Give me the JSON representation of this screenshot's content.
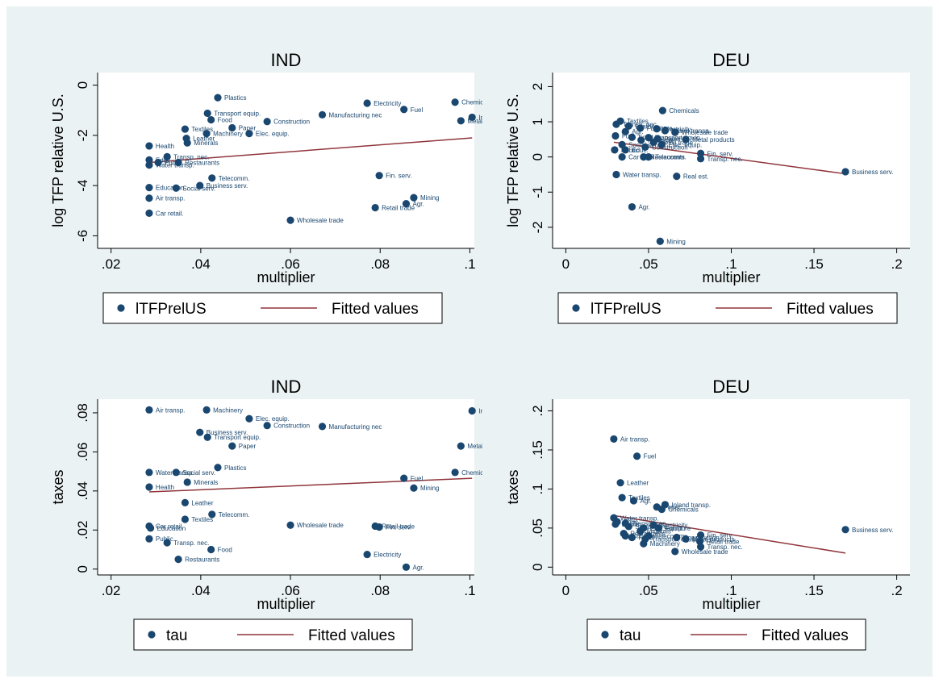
{
  "colors": {
    "background": "#eaf2f3",
    "marker": "#1a476f",
    "fit": "#90353b",
    "text": "#000000"
  },
  "chart_data": [
    {
      "type": "scatter",
      "title": "IND",
      "xlabel": "multiplier",
      "ylabel": "log TFP relative U.S.",
      "xlim": [
        0.017,
        0.101
      ],
      "ylim": [
        -6.5,
        0.5
      ],
      "xticks": [
        0.02,
        0.04,
        0.06,
        0.08,
        0.1
      ],
      "xtick_labels": [
        ".02",
        ".04",
        ".06",
        ".08",
        ".1"
      ],
      "yticks": [
        -6,
        -4,
        -2,
        0
      ],
      "ytick_labels": [
        "-6",
        "-4",
        "-2",
        "0"
      ],
      "legend": {
        "position": "bottom",
        "entries": [
          "lTFPrelUS",
          "Fitted values"
        ]
      },
      "fit_line": {
        "x": [
          0.0285,
          0.1005
        ],
        "y": [
          -3.08,
          -2.1
        ]
      },
      "points": [
        {
          "x": 0.0438,
          "y": -0.5,
          "label": "Plastics"
        },
        {
          "x": 0.0771,
          "y": -0.72,
          "label": "Electricity"
        },
        {
          "x": 0.0967,
          "y": -0.68,
          "label": "Chemicals"
        },
        {
          "x": 0.0853,
          "y": -0.97,
          "label": "Fuel"
        },
        {
          "x": 0.1005,
          "y": -1.28,
          "label": "Inland t"
        },
        {
          "x": 0.098,
          "y": -1.42,
          "label": "Metal prod"
        },
        {
          "x": 0.0415,
          "y": -1.12,
          "label": "Transport equip."
        },
        {
          "x": 0.0671,
          "y": -1.18,
          "label": "Manufacturing nec"
        },
        {
          "x": 0.0423,
          "y": -1.38,
          "label": "Food"
        },
        {
          "x": 0.0548,
          "y": -1.45,
          "label": "Construction"
        },
        {
          "x": 0.047,
          "y": -1.7,
          "label": "Paper"
        },
        {
          "x": 0.0365,
          "y": -1.75,
          "label": "Textiles"
        },
        {
          "x": 0.0413,
          "y": -1.93,
          "label": "Machinery"
        },
        {
          "x": 0.0508,
          "y": -1.93,
          "label": "Elec. equip."
        },
        {
          "x": 0.0368,
          "y": -2.12,
          "label": "Leather"
        },
        {
          "x": 0.037,
          "y": -2.3,
          "label": "Minerals"
        },
        {
          "x": 0.0285,
          "y": -2.42,
          "label": "Health"
        },
        {
          "x": 0.0325,
          "y": -2.85,
          "label": "Transp. nec."
        },
        {
          "x": 0.0285,
          "y": -2.98,
          "label": "Educ."
        },
        {
          "x": 0.0285,
          "y": -3.18,
          "label": "Water transp."
        },
        {
          "x": 0.035,
          "y": -3.08,
          "label": "Restaurants"
        },
        {
          "x": 0.0305,
          "y": -3.08,
          "label": "Public"
        },
        {
          "x": 0.0425,
          "y": -3.7,
          "label": "Telecomm."
        },
        {
          "x": 0.0798,
          "y": -3.6,
          "label": "Fin. serv."
        },
        {
          "x": 0.0398,
          "y": -4.0,
          "label": "Business serv."
        },
        {
          "x": 0.0285,
          "y": -4.08,
          "label": "Education"
        },
        {
          "x": 0.0345,
          "y": -4.1,
          "label": "Social serv."
        },
        {
          "x": 0.0285,
          "y": -4.5,
          "label": "Air transp."
        },
        {
          "x": 0.0875,
          "y": -4.48,
          "label": "Mining"
        },
        {
          "x": 0.0858,
          "y": -4.72,
          "label": "Agr."
        },
        {
          "x": 0.0789,
          "y": -4.88,
          "label": "Retail trade"
        },
        {
          "x": 0.0285,
          "y": -5.1,
          "label": "Car retail."
        },
        {
          "x": 0.06,
          "y": -5.38,
          "label": "Wholesale trade"
        }
      ]
    },
    {
      "type": "scatter",
      "title": "DEU",
      "xlabel": "multiplier",
      "ylabel": "log TFP relative U.S.",
      "xlim": [
        -0.008,
        0.208
      ],
      "ylim": [
        -2.6,
        2.4
      ],
      "xticks": [
        0,
        0.05,
        0.1,
        0.15,
        0.2
      ],
      "xtick_labels": [
        "0",
        ".05",
        ".1",
        ".15",
        ".2"
      ],
      "yticks": [
        -2,
        -1,
        0,
        1,
        2
      ],
      "ytick_labels": [
        "-2",
        "-1",
        "0",
        "1",
        "2"
      ],
      "legend": {
        "position": "bottom",
        "entries": [
          "lTFPrelUS",
          "Fitted values"
        ]
      },
      "fit_line": {
        "x": [
          0.029,
          0.169
        ],
        "y": [
          0.42,
          -0.48
        ]
      },
      "points": [
        {
          "x": 0.0585,
          "y": 1.32,
          "label": "Chemicals"
        },
        {
          "x": 0.033,
          "y": 1.02,
          "label": "Textiles"
        },
        {
          "x": 0.0305,
          "y": 0.93,
          "label": "Transp. nec."
        },
        {
          "x": 0.038,
          "y": 0.88,
          "label": "Leather"
        },
        {
          "x": 0.045,
          "y": 0.82,
          "label": "Furniture"
        },
        {
          "x": 0.055,
          "y": 0.8,
          "label": "Electricity"
        },
        {
          "x": 0.06,
          "y": 0.75,
          "label": "Inland transp."
        },
        {
          "x": 0.036,
          "y": 0.72,
          "label": "Agr."
        },
        {
          "x": 0.066,
          "y": 0.7,
          "label": "Wholesale trade"
        },
        {
          "x": 0.03,
          "y": 0.6,
          "label": "Fuel"
        },
        {
          "x": 0.04,
          "y": 0.56,
          "label": "Food"
        },
        {
          "x": 0.05,
          "y": 0.55,
          "label": "Transport equip."
        },
        {
          "x": 0.0555,
          "y": 0.52,
          "label": "Paper"
        },
        {
          "x": 0.0725,
          "y": 0.5,
          "label": "Metal products"
        },
        {
          "x": 0.0455,
          "y": 0.48,
          "label": "Minerals"
        },
        {
          "x": 0.053,
          "y": 0.42,
          "label": "Retail trade"
        },
        {
          "x": 0.058,
          "y": 0.35,
          "label": "Elec. equip."
        },
        {
          "x": 0.034,
          "y": 0.35,
          "label": "Social serv."
        },
        {
          "x": 0.048,
          "y": 0.28,
          "label": "Construction"
        },
        {
          "x": 0.0295,
          "y": 0.2,
          "label": "Public"
        },
        {
          "x": 0.036,
          "y": 0.2,
          "label": "Educ."
        },
        {
          "x": 0.0815,
          "y": 0.1,
          "label": "Fin. serv."
        },
        {
          "x": 0.034,
          "y": 0.0,
          "label": "Car retail."
        },
        {
          "x": 0.047,
          "y": 0.0,
          "label": "Restaurants"
        },
        {
          "x": 0.05,
          "y": 0.0,
          "label": "Telecomm."
        },
        {
          "x": 0.0815,
          "y": -0.05,
          "label": "Transp. nec."
        },
        {
          "x": 0.169,
          "y": -0.42,
          "label": "Business serv."
        },
        {
          "x": 0.0305,
          "y": -0.5,
          "label": "Water transp."
        },
        {
          "x": 0.067,
          "y": -0.55,
          "label": "Real est."
        },
        {
          "x": 0.04,
          "y": -1.42,
          "label": "Agr."
        },
        {
          "x": 0.057,
          "y": -2.4,
          "label": "Mining"
        }
      ]
    },
    {
      "type": "scatter",
      "title": "IND",
      "xlabel": "multiplier",
      "ylabel": "taxes",
      "xlim": [
        0.017,
        0.101
      ],
      "ylim": [
        -0.003,
        0.087
      ],
      "xticks": [
        0.02,
        0.04,
        0.06,
        0.08,
        0.1
      ],
      "xtick_labels": [
        ".02",
        ".04",
        ".06",
        ".08",
        ".1"
      ],
      "yticks": [
        0,
        0.02,
        0.04,
        0.06,
        0.08
      ],
      "ytick_labels": [
        "0",
        ".02",
        ".04",
        ".06",
        ".08"
      ],
      "legend": {
        "position": "bottom",
        "entries": [
          "tau",
          "Fitted values"
        ]
      },
      "fit_line": {
        "x": [
          0.0285,
          0.1005
        ],
        "y": [
          0.0395,
          0.0465
        ]
      },
      "points": [
        {
          "x": 0.0285,
          "y": 0.0815,
          "label": "Air transp."
        },
        {
          "x": 0.0413,
          "y": 0.0815,
          "label": "Machinery"
        },
        {
          "x": 0.1005,
          "y": 0.081,
          "label": "Inland t"
        },
        {
          "x": 0.0508,
          "y": 0.077,
          "label": "Elec. equip."
        },
        {
          "x": 0.0548,
          "y": 0.0735,
          "label": "Construction"
        },
        {
          "x": 0.0671,
          "y": 0.073,
          "label": "Manufacturing nec"
        },
        {
          "x": 0.0398,
          "y": 0.07,
          "label": "Business serv."
        },
        {
          "x": 0.0415,
          "y": 0.0675,
          "label": "Transport equip."
        },
        {
          "x": 0.047,
          "y": 0.063,
          "label": "Paper"
        },
        {
          "x": 0.098,
          "y": 0.063,
          "label": "Metal prod"
        },
        {
          "x": 0.0438,
          "y": 0.052,
          "label": "Plastics"
        },
        {
          "x": 0.0285,
          "y": 0.0495,
          "label": "Water transp."
        },
        {
          "x": 0.0345,
          "y": 0.0495,
          "label": "Social serv."
        },
        {
          "x": 0.0967,
          "y": 0.0495,
          "label": "Chemicals"
        },
        {
          "x": 0.0853,
          "y": 0.0465,
          "label": "Fuel"
        },
        {
          "x": 0.037,
          "y": 0.0445,
          "label": "Minerals"
        },
        {
          "x": 0.0285,
          "y": 0.042,
          "label": "Health"
        },
        {
          "x": 0.0875,
          "y": 0.0415,
          "label": "Mining"
        },
        {
          "x": 0.0365,
          "y": 0.034,
          "label": "Leather"
        },
        {
          "x": 0.0425,
          "y": 0.028,
          "label": "Telecomm."
        },
        {
          "x": 0.0365,
          "y": 0.0255,
          "label": "Textiles"
        },
        {
          "x": 0.06,
          "y": 0.0225,
          "label": "Wholesale trade"
        },
        {
          "x": 0.0789,
          "y": 0.022,
          "label": "Retail trade"
        },
        {
          "x": 0.0798,
          "y": 0.0215,
          "label": "Fin. serv."
        },
        {
          "x": 0.0285,
          "y": 0.022,
          "label": "Car retail."
        },
        {
          "x": 0.0288,
          "y": 0.021,
          "label": "Education"
        },
        {
          "x": 0.0285,
          "y": 0.0155,
          "label": "Public"
        },
        {
          "x": 0.0325,
          "y": 0.0135,
          "label": "Transp. nec."
        },
        {
          "x": 0.0423,
          "y": 0.01,
          "label": "Food"
        },
        {
          "x": 0.0771,
          "y": 0.0075,
          "label": "Electricity"
        },
        {
          "x": 0.035,
          "y": 0.005,
          "label": "Restaurants"
        },
        {
          "x": 0.0858,
          "y": 0.001,
          "label": "Agr."
        }
      ]
    },
    {
      "type": "scatter",
      "title": "DEU",
      "xlabel": "multiplier",
      "ylabel": "taxes",
      "xlim": [
        -0.008,
        0.208
      ],
      "ylim": [
        -0.01,
        0.215
      ],
      "xticks": [
        0,
        0.05,
        0.1,
        0.15,
        0.2
      ],
      "xtick_labels": [
        "0",
        ".05",
        ".1",
        ".15",
        ".2"
      ],
      "yticks": [
        0,
        0.05,
        0.1,
        0.15,
        0.2
      ],
      "ytick_labels": [
        "0",
        ".05",
        ".1",
        ".15",
        ".2"
      ],
      "legend": {
        "position": "bottom",
        "entries": [
          "tau",
          "Fitted values"
        ]
      },
      "fit_line": {
        "x": [
          0.029,
          0.169
        ],
        "y": [
          0.066,
          0.018
        ]
      },
      "points": [
        {
          "x": 0.029,
          "y": 0.164,
          "label": "Air transp."
        },
        {
          "x": 0.043,
          "y": 0.142,
          "label": "Fuel"
        },
        {
          "x": 0.033,
          "y": 0.108,
          "label": "Leather"
        },
        {
          "x": 0.034,
          "y": 0.089,
          "label": "Textiles"
        },
        {
          "x": 0.041,
          "y": 0.085,
          "label": "Agr."
        },
        {
          "x": 0.06,
          "y": 0.08,
          "label": "Inland transp."
        },
        {
          "x": 0.055,
          "y": 0.077,
          "label": "Paper"
        },
        {
          "x": 0.058,
          "y": 0.074,
          "label": "Chemicals"
        },
        {
          "x": 0.029,
          "y": 0.063,
          "label": "Water transp."
        },
        {
          "x": 0.031,
          "y": 0.058,
          "label": "Educ."
        },
        {
          "x": 0.036,
          "y": 0.056,
          "label": "Transp. nec."
        },
        {
          "x": 0.053,
          "y": 0.054,
          "label": "Electricity"
        },
        {
          "x": 0.038,
          "y": 0.052,
          "label": "Social serv."
        },
        {
          "x": 0.047,
          "y": 0.05,
          "label": "Elec. equip."
        },
        {
          "x": 0.056,
          "y": 0.05,
          "label": "Furniture"
        },
        {
          "x": 0.03,
          "y": 0.055,
          "label": "Public"
        },
        {
          "x": 0.045,
          "y": 0.046,
          "label": "Minerals"
        },
        {
          "x": 0.035,
          "y": 0.043,
          "label": "Restaurants"
        },
        {
          "x": 0.0815,
          "y": 0.041,
          "label": "Fin. serv."
        },
        {
          "x": 0.05,
          "y": 0.04,
          "label": "Telecomm."
        },
        {
          "x": 0.036,
          "y": 0.04,
          "label": "Car retail."
        },
        {
          "x": 0.067,
          "y": 0.038,
          "label": "Construction"
        },
        {
          "x": 0.0725,
          "y": 0.036,
          "label": "Metal products"
        },
        {
          "x": 0.04,
          "y": 0.038,
          "label": "Food"
        },
        {
          "x": 0.048,
          "y": 0.036,
          "label": "Transport equip."
        },
        {
          "x": 0.081,
          "y": 0.033,
          "label": "Retail trade"
        },
        {
          "x": 0.047,
          "y": 0.03,
          "label": "Machinery"
        },
        {
          "x": 0.0815,
          "y": 0.026,
          "label": "Transp. nec."
        },
        {
          "x": 0.066,
          "y": 0.02,
          "label": "Wholesale trade"
        },
        {
          "x": 0.169,
          "y": 0.048,
          "label": "Business serv."
        }
      ]
    }
  ]
}
